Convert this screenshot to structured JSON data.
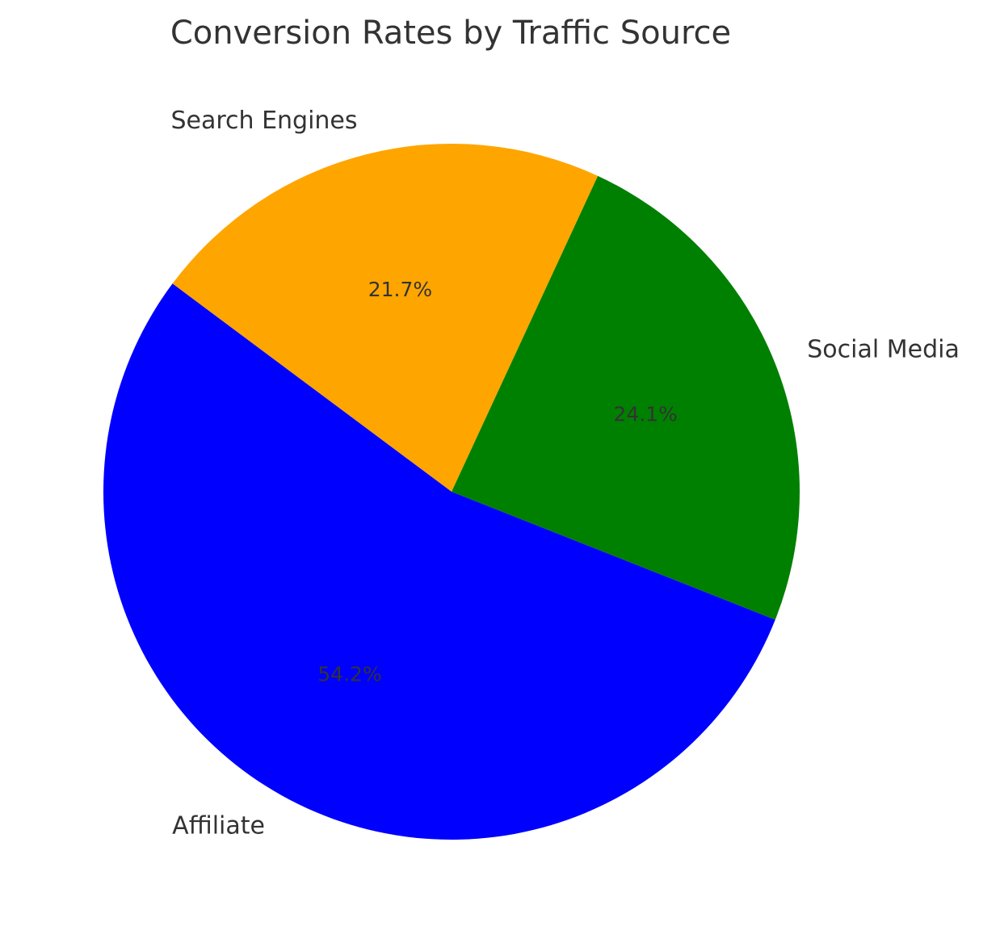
{
  "chart_data": {
    "type": "pie",
    "title": "Conversion Rates by Traffic Source",
    "slices": [
      {
        "label": "Social Media",
        "value": 24.1,
        "pct_label": "24.1%",
        "color": "#008000"
      },
      {
        "label": "Search Engines",
        "value": 21.7,
        "pct_label": "21.7%",
        "color": "#FFA500"
      },
      {
        "label": "Affiliate",
        "value": 54.2,
        "pct_label": "54.2%",
        "color": "#0000FF"
      }
    ],
    "start_angle_deg": -21.6,
    "direction": "counterclockwise"
  }
}
